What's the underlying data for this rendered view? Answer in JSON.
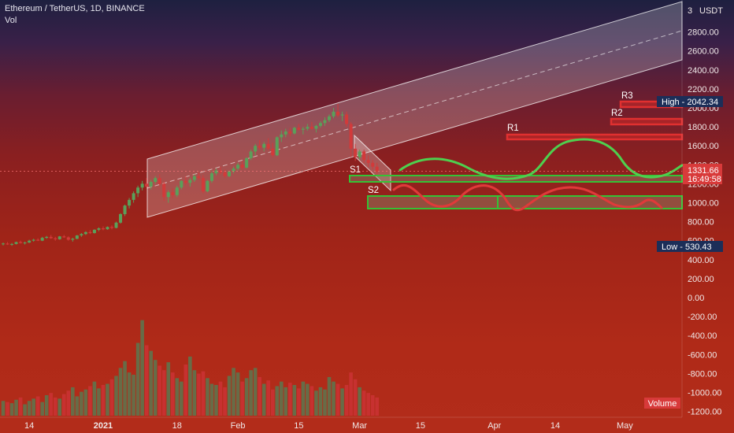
{
  "header": {
    "symbol": "Ethereum / TetherUS, 1D, BINANCE",
    "indicator": "Vol"
  },
  "chart_data": {
    "type": "candlestick",
    "currency": "USDT",
    "y_axis_ticks": [
      2800,
      2600,
      2400,
      2200,
      2000,
      1800,
      1600,
      1400,
      1200,
      1000,
      800,
      600,
      400,
      200,
      0,
      -200,
      -400,
      -600,
      -800,
      -1000,
      -1200
    ],
    "y_axis_tick_labels": [
      "2800.00",
      "2600.00",
      "2400.00",
      "2200.00",
      "2000.00",
      "1800.00",
      "1600.00",
      "1400.00",
      "1200.00",
      "1000.00",
      "800.00",
      "600.00",
      "400.00",
      "200.00",
      "0.00",
      "-200.00",
      "-400.00",
      "-600.00",
      "-800.00",
      "-1000.00",
      "-1200.00"
    ],
    "y_axis_top_label": "3",
    "x_axis_labels": [
      "14",
      "2021",
      "18",
      "Feb",
      "15",
      "Mar",
      "15",
      "Apr",
      "14",
      "May"
    ],
    "x_axis_day_index": [
      -18,
      -1,
      16,
      30,
      44,
      58,
      72,
      89,
      103,
      119
    ],
    "price_markers": {
      "current": {
        "value": "1331.66",
        "timer": "16:49:58"
      },
      "high": {
        "label": "High",
        "value": "2042.34"
      },
      "low": {
        "label": "Low",
        "value": "530.43"
      }
    },
    "volume_label": "Volume",
    "annotations": {
      "resistances": [
        {
          "name": "R1",
          "price": 1710
        },
        {
          "name": "R2",
          "price": 1840
        },
        {
          "name": "R3",
          "price": 2010
        }
      ],
      "supports": [
        {
          "name": "S1",
          "price": 1260
        },
        {
          "name": "S2",
          "price": 990
        }
      ]
    },
    "candles": [
      [
        565,
        580,
        550,
        570
      ],
      [
        570,
        585,
        555,
        560
      ],
      [
        560,
        575,
        545,
        565
      ],
      [
        565,
        590,
        560,
        585
      ],
      [
        585,
        600,
        570,
        575
      ],
      [
        575,
        590,
        560,
        580
      ],
      [
        580,
        610,
        575,
        600
      ],
      [
        600,
        620,
        590,
        610
      ],
      [
        610,
        625,
        595,
        600
      ],
      [
        600,
        640,
        595,
        630
      ],
      [
        630,
        650,
        620,
        640
      ],
      [
        640,
        660,
        620,
        625
      ],
      [
        625,
        640,
        600,
        615
      ],
      [
        615,
        650,
        610,
        645
      ],
      [
        645,
        660,
        630,
        635
      ],
      [
        635,
        645,
        600,
        610
      ],
      [
        610,
        630,
        590,
        620
      ],
      [
        620,
        660,
        615,
        655
      ],
      [
        655,
        680,
        640,
        670
      ],
      [
        670,
        700,
        660,
        690
      ],
      [
        690,
        710,
        670,
        680
      ],
      [
        680,
        720,
        675,
        715
      ],
      [
        715,
        740,
        700,
        730
      ],
      [
        730,
        750,
        710,
        720
      ],
      [
        720,
        750,
        715,
        745
      ],
      [
        745,
        760,
        720,
        735
      ],
      [
        735,
        800,
        730,
        790
      ],
      [
        790,
        890,
        780,
        880
      ],
      [
        880,
        980,
        860,
        970
      ],
      [
        970,
        1050,
        940,
        1030
      ],
      [
        1030,
        1120,
        1000,
        1100
      ],
      [
        1100,
        1180,
        1060,
        1160
      ],
      [
        1160,
        1230,
        1130,
        1200
      ],
      [
        1200,
        1260,
        1150,
        1170
      ],
      [
        1170,
        1240,
        1140,
        1220
      ],
      [
        1220,
        1280,
        1200,
        1260
      ],
      [
        1260,
        1300,
        1180,
        1200
      ],
      [
        1200,
        1220,
        1020,
        1060
      ],
      [
        1060,
        1130,
        1000,
        1110
      ],
      [
        1110,
        1150,
        1050,
        1080
      ],
      [
        1080,
        1180,
        1060,
        1160
      ],
      [
        1160,
        1240,
        1140,
        1230
      ],
      [
        1230,
        1280,
        1190,
        1210
      ],
      [
        1210,
        1260,
        1170,
        1240
      ],
      [
        1240,
        1300,
        1220,
        1280
      ],
      [
        1280,
        1320,
        1240,
        1260
      ],
      [
        1260,
        1290,
        1100,
        1120
      ],
      [
        1120,
        1240,
        1110,
        1230
      ],
      [
        1230,
        1330,
        1210,
        1310
      ],
      [
        1310,
        1360,
        1290,
        1340
      ],
      [
        1340,
        1380,
        1300,
        1320
      ],
      [
        1320,
        1350,
        1260,
        1280
      ],
      [
        1280,
        1340,
        1270,
        1330
      ],
      [
        1330,
        1380,
        1310,
        1360
      ],
      [
        1360,
        1420,
        1340,
        1400
      ],
      [
        1400,
        1440,
        1350,
        1370
      ],
      [
        1370,
        1480,
        1360,
        1470
      ],
      [
        1470,
        1560,
        1450,
        1540
      ],
      [
        1540,
        1620,
        1500,
        1600
      ],
      [
        1600,
        1660,
        1560,
        1580
      ],
      [
        1580,
        1640,
        1540,
        1620
      ],
      [
        1620,
        1680,
        1550,
        1570
      ],
      [
        1570,
        1630,
        1480,
        1500
      ],
      [
        1500,
        1700,
        1490,
        1690
      ],
      [
        1690,
        1760,
        1640,
        1720
      ],
      [
        1720,
        1780,
        1690,
        1750
      ],
      [
        1750,
        1790,
        1700,
        1730
      ],
      [
        1730,
        1800,
        1720,
        1790
      ],
      [
        1790,
        1830,
        1760,
        1770
      ],
      [
        1770,
        1800,
        1720,
        1780
      ],
      [
        1780,
        1830,
        1760,
        1800
      ],
      [
        1800,
        1850,
        1770,
        1780
      ],
      [
        1780,
        1820,
        1740,
        1810
      ],
      [
        1810,
        1860,
        1790,
        1840
      ],
      [
        1840,
        1900,
        1810,
        1870
      ],
      [
        1870,
        1930,
        1850,
        1910
      ],
      [
        1910,
        2000,
        1890,
        1960
      ],
      [
        1960,
        2042,
        1900,
        1920
      ],
      [
        1920,
        1960,
        1860,
        1930
      ],
      [
        1930,
        1960,
        1800,
        1830
      ],
      [
        1830,
        1850,
        1480,
        1570
      ],
      [
        1570,
        1620,
        1440,
        1480
      ],
      [
        1480,
        1560,
        1450,
        1540
      ],
      [
        1540,
        1560,
        1420,
        1450
      ],
      [
        1450,
        1500,
        1380,
        1420
      ],
      [
        1420,
        1450,
        1350,
        1380
      ],
      [
        1380,
        1420,
        1300,
        1331
      ]
    ],
    "volumes": [
      130,
      120,
      110,
      140,
      160,
      100,
      130,
      150,
      170,
      120,
      180,
      200,
      160,
      150,
      190,
      220,
      250,
      170,
      210,
      230,
      260,
      300,
      240,
      270,
      280,
      320,
      350,
      420,
      480,
      380,
      360,
      640,
      840,
      620,
      570,
      490,
      440,
      400,
      470,
      380,
      330,
      300,
      450,
      520,
      400,
      370,
      390,
      330,
      280,
      270,
      300,
      250,
      350,
      420,
      380,
      300,
      330,
      400,
      420,
      340,
      280,
      310,
      230,
      260,
      300,
      250,
      290,
      270,
      240,
      300,
      280,
      260,
      220,
      250,
      230,
      340,
      300,
      280,
      240,
      270,
      380,
      320,
      250,
      220,
      200,
      180,
      160
    ],
    "volume_axis_max": 900
  }
}
